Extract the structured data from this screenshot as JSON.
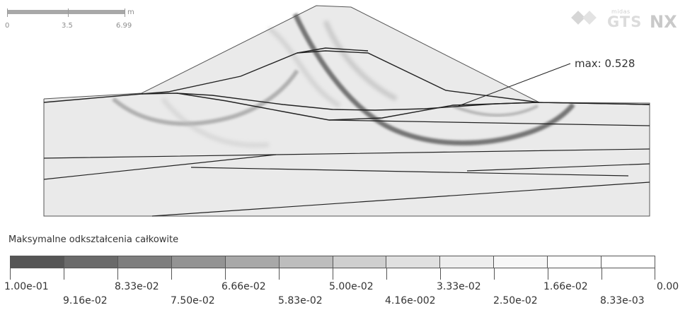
{
  "scale_bar": {
    "unit": "m",
    "labels": [
      "0",
      "3.5",
      "6.99"
    ]
  },
  "logo": {
    "small_text": "midas",
    "brand": "GTS",
    "suffix": "NX"
  },
  "result": {
    "max_label": "max: 0.528"
  },
  "legend": {
    "title": "Maksymalne odkształcenia całkowite",
    "colors": [
      "#555555",
      "#6a6a6a",
      "#7e7e7e",
      "#939393",
      "#a8a8a8",
      "#bdbdbd",
      "#cfcfcf",
      "#e0e0e0",
      "#eeeeee",
      "#f7f7f7",
      "#fdfdfd",
      "#ffffff"
    ],
    "upper_labels": [
      "1.00e-01",
      "8.33e-02",
      "6.66e-02",
      "5.00e-02",
      "3.33e-02",
      "1.66e-02",
      "0.00"
    ],
    "lower_labels": [
      "9.16e-02",
      "7.50e-02",
      "5.83e-02",
      "4.16e-002",
      "2.50e-02",
      "8.33e-03"
    ]
  }
}
